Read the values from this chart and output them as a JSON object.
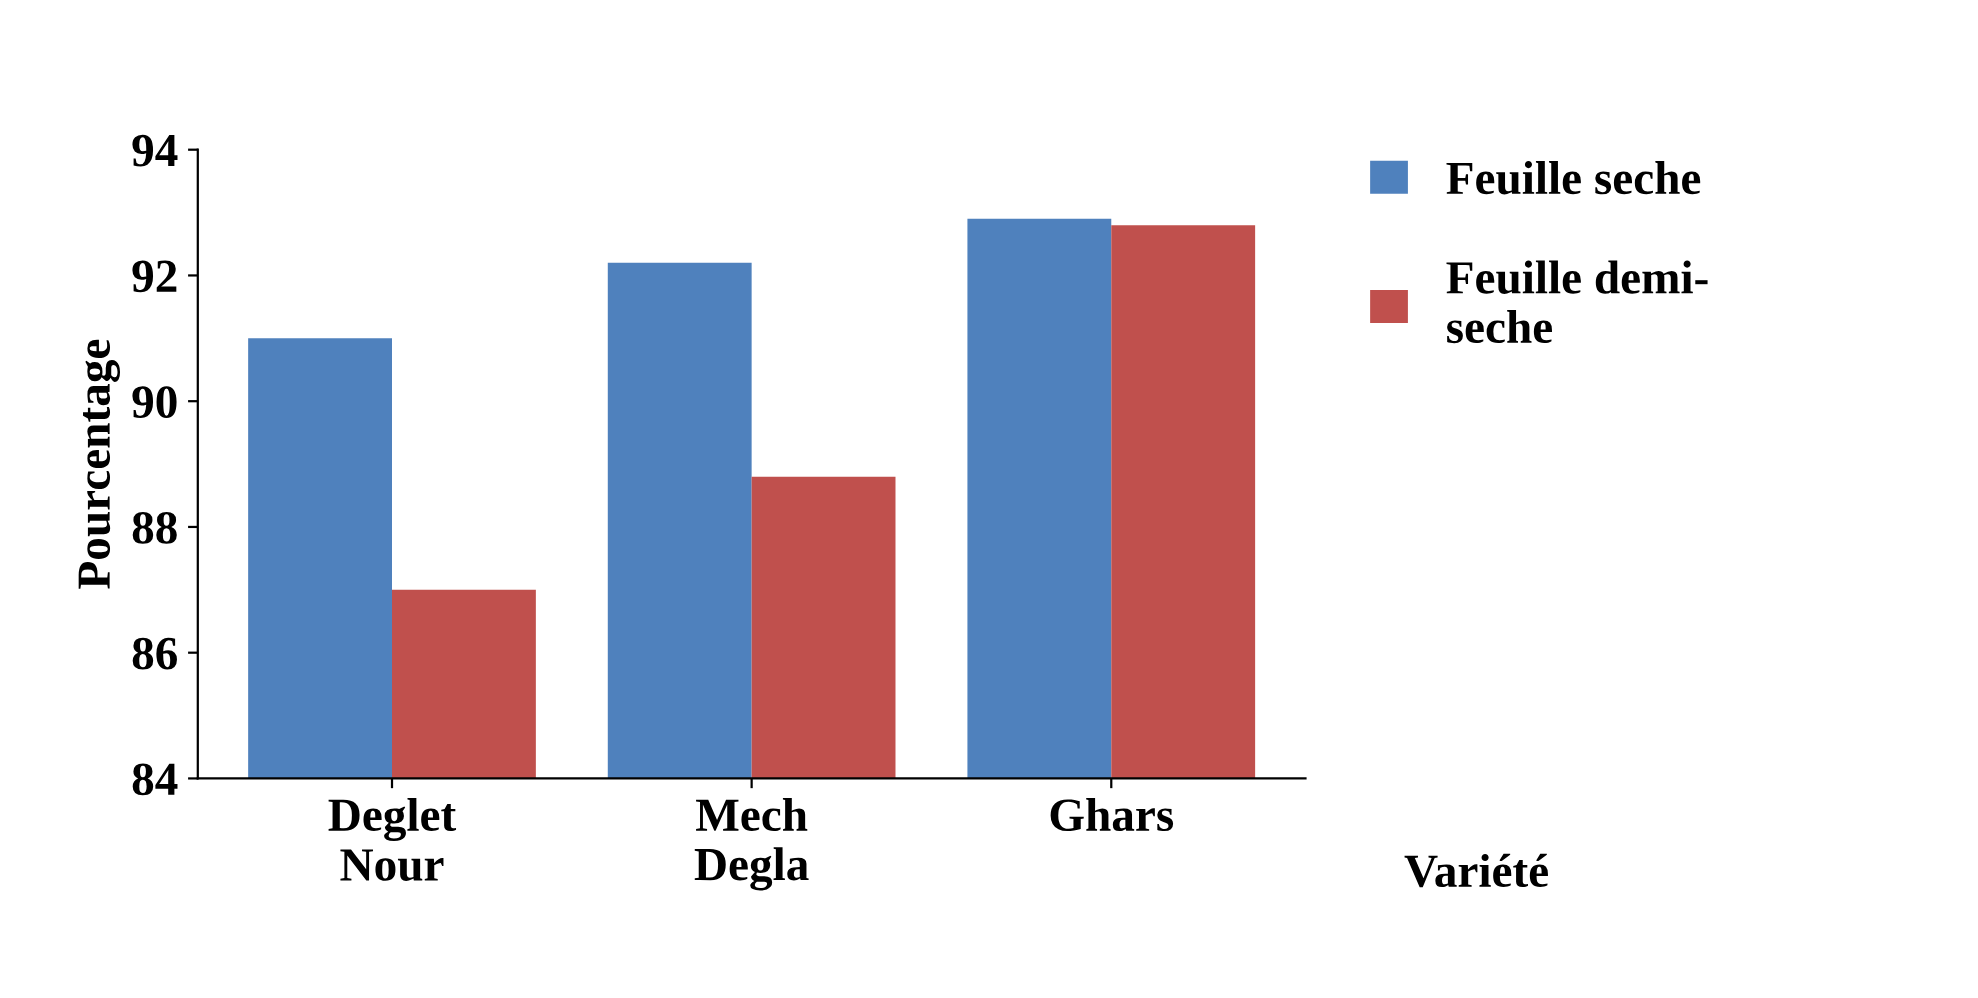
{
  "chart_data": {
    "type": "bar",
    "categories": [
      "Deglet\nNour",
      "Mech\nDegla",
      "Ghars"
    ],
    "series": [
      {
        "name": "Feuille seche",
        "color": "#4f81bd",
        "values": [
          91.0,
          92.2,
          92.9
        ]
      },
      {
        "name": "Feuille demi-\nseche",
        "color": "#c0504d",
        "values": [
          87.0,
          88.8,
          92.8
        ]
      }
    ],
    "ylabel": "Pourcentage",
    "xlabel": "Variété",
    "ylim": [
      84,
      94
    ],
    "yticks": [
      84,
      86,
      88,
      90,
      92,
      94
    ],
    "grid": false,
    "legend": "right"
  }
}
